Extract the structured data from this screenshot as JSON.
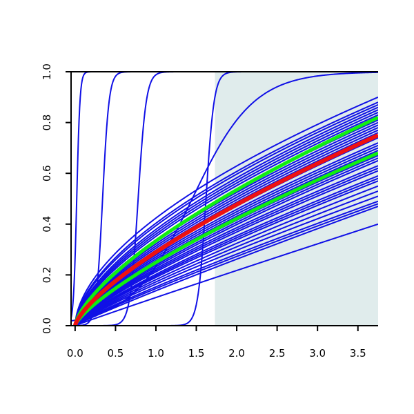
{
  "chart_data": {
    "type": "line",
    "title": "",
    "xlabel": "",
    "ylabel": "",
    "xlim": [
      -0.05,
      3.75
    ],
    "ylim": [
      0,
      1
    ],
    "x_ticks": [
      "0.0",
      "0.5",
      "1.0",
      "1.5",
      "2.0",
      "2.5",
      "3.0",
      "3.5"
    ],
    "y_ticks": [
      "0.0",
      "0.2",
      "0.4",
      "0.6",
      "0.8",
      "1.0"
    ],
    "grid": false,
    "legend": "none",
    "shaded_region": {
      "x_from": 1.73,
      "x_to": 3.75,
      "color": "#e0ecec"
    },
    "colors": {
      "draws": "#1010e6",
      "median": "#ee1111",
      "quantile": "#11ee11",
      "axes": "#000000"
    },
    "series": [
      {
        "kind": "step",
        "location": 0.02,
        "width": 0.02
      },
      {
        "kind": "step",
        "location": 0.34,
        "width": 0.04
      },
      {
        "kind": "step",
        "location": 0.78,
        "width": 0.05
      },
      {
        "kind": "step",
        "location": 1.62,
        "width": 0.05
      },
      {
        "kind": "sigmoid",
        "location": 1.45,
        "width": 0.38
      },
      {
        "kind": "power",
        "y_at_xmax": 0.4,
        "shape": 0.97
      },
      {
        "kind": "power",
        "y_at_xmax": 0.47,
        "shape": 0.93
      },
      {
        "kind": "power",
        "y_at_xmax": 0.48,
        "shape": 0.9
      },
      {
        "kind": "power",
        "y_at_xmax": 0.49,
        "shape": 0.88
      },
      {
        "kind": "power",
        "y_at_xmax": 0.51,
        "shape": 0.86
      },
      {
        "kind": "power",
        "y_at_xmax": 0.53,
        "shape": 0.85
      },
      {
        "kind": "power",
        "y_at_xmax": 0.55,
        "shape": 0.84
      },
      {
        "kind": "power",
        "y_at_xmax": 0.57,
        "shape": 0.83
      },
      {
        "kind": "power",
        "y_at_xmax": 0.58,
        "shape": 0.82
      },
      {
        "kind": "power",
        "y_at_xmax": 0.59,
        "shape": 0.81
      },
      {
        "kind": "power",
        "y_at_xmax": 0.61,
        "shape": 0.8
      },
      {
        "kind": "power",
        "y_at_xmax": 0.62,
        "shape": 0.79
      },
      {
        "kind": "power",
        "y_at_xmax": 0.63,
        "shape": 0.78
      },
      {
        "kind": "power",
        "y_at_xmax": 0.65,
        "shape": 0.78
      },
      {
        "kind": "power",
        "y_at_xmax": 0.66,
        "shape": 0.77
      },
      {
        "kind": "power",
        "y_at_xmax": 0.67,
        "shape": 0.76
      },
      {
        "kind": "power",
        "y_at_xmax": 0.69,
        "shape": 0.75
      },
      {
        "kind": "power",
        "y_at_xmax": 0.7,
        "shape": 0.74
      },
      {
        "kind": "power",
        "y_at_xmax": 0.71,
        "shape": 0.73
      },
      {
        "kind": "power",
        "y_at_xmax": 0.72,
        "shape": 0.72
      },
      {
        "kind": "power",
        "y_at_xmax": 0.74,
        "shape": 0.72
      },
      {
        "kind": "power",
        "y_at_xmax": 0.76,
        "shape": 0.71
      },
      {
        "kind": "power",
        "y_at_xmax": 0.77,
        "shape": 0.7
      },
      {
        "kind": "power",
        "y_at_xmax": 0.78,
        "shape": 0.69
      },
      {
        "kind": "power",
        "y_at_xmax": 0.79,
        "shape": 0.68
      },
      {
        "kind": "power",
        "y_at_xmax": 0.8,
        "shape": 0.67
      },
      {
        "kind": "power",
        "y_at_xmax": 0.81,
        "shape": 0.66
      },
      {
        "kind": "power",
        "y_at_xmax": 0.83,
        "shape": 0.65
      },
      {
        "kind": "power",
        "y_at_xmax": 0.84,
        "shape": 0.64
      },
      {
        "kind": "power",
        "y_at_xmax": 0.85,
        "shape": 0.63
      },
      {
        "kind": "power",
        "y_at_xmax": 0.86,
        "shape": 0.62
      },
      {
        "kind": "power",
        "y_at_xmax": 0.87,
        "shape": 0.6
      },
      {
        "kind": "power",
        "y_at_xmax": 0.88,
        "shape": 0.59
      },
      {
        "kind": "power",
        "y_at_xmax": 0.9,
        "shape": 0.57
      },
      {
        "kind": "power",
        "y_at_xmax": 0.68,
        "shape": 0.76,
        "role": "quantile"
      },
      {
        "kind": "power",
        "y_at_xmax": 0.82,
        "shape": 0.68,
        "role": "quantile"
      },
      {
        "kind": "power",
        "y_at_xmax": 0.75,
        "shape": 0.72,
        "role": "median"
      }
    ]
  }
}
